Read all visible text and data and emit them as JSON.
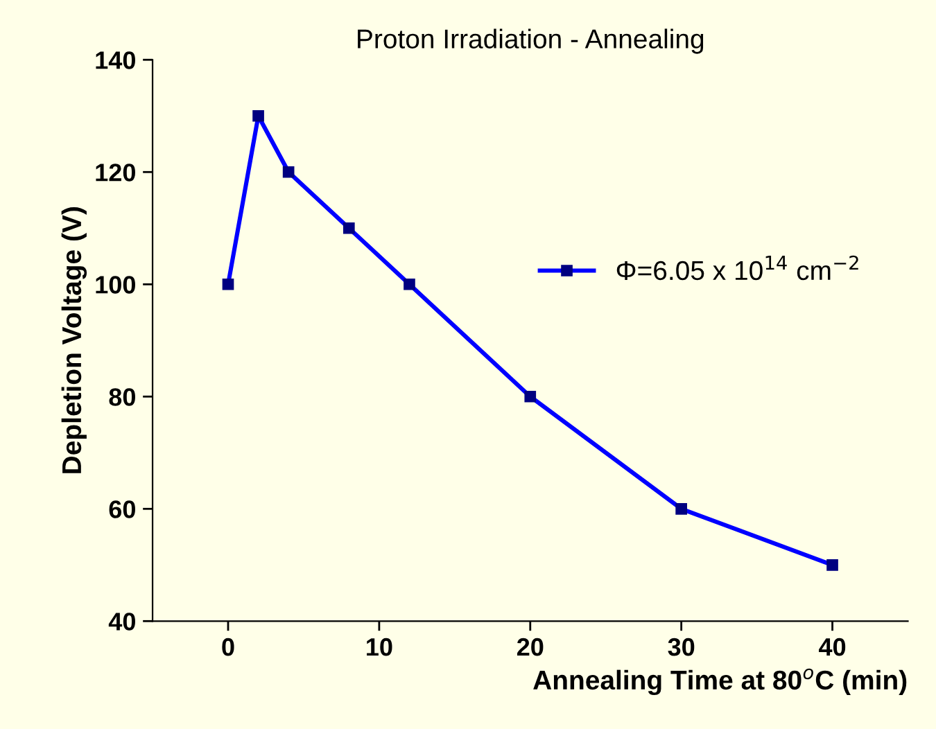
{
  "chart_data": {
    "type": "line",
    "title": "Proton Irradiation - Annealing",
    "xlabel": "Annealing Time at 80$^{o}$C (min)",
    "ylabel": "Depletion Voltage (V)",
    "x": [
      0,
      2,
      4,
      8,
      12,
      20,
      30,
      40
    ],
    "series": [
      {
        "name": "Φ=6.05 x 10$^{14}$ cm$^{−2}$",
        "color": "#0000ff",
        "values": [
          100,
          130,
          120,
          110,
          100,
          80,
          60,
          50
        ]
      }
    ],
    "xlim": [
      -5,
      45
    ],
    "ylim": [
      40,
      140
    ],
    "xticks": [
      0,
      10,
      20,
      30,
      40
    ],
    "yticks": [
      40,
      60,
      80,
      100,
      120,
      140
    ],
    "grid": false,
    "legend": "right",
    "marker": "square",
    "line_style": "solid"
  }
}
